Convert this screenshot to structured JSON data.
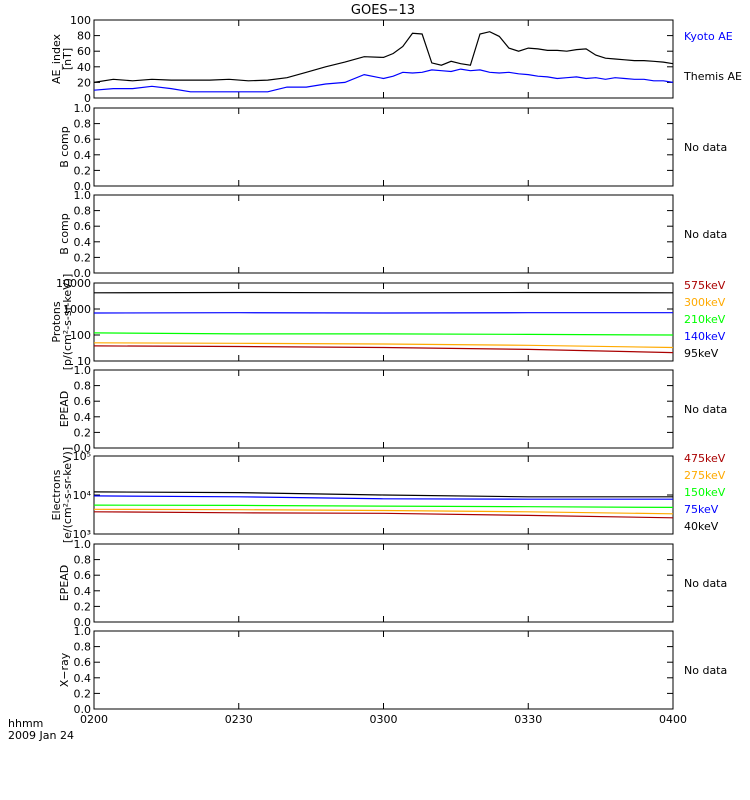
{
  "title": "GOES−13",
  "x_axis": {
    "label_line1": "hhmm",
    "label_line2": "2009 Jan 24",
    "tick_labels": [
      "0200",
      "0230",
      "0300",
      "0330",
      "0400"
    ],
    "range_minutes": [
      0,
      120
    ]
  },
  "colors": {
    "black": "#000000",
    "blue": "#0000ff",
    "green": "#00ff00",
    "orange": "#ffaa00",
    "darkred": "#aa0000"
  },
  "chart_data": [
    {
      "type": "line",
      "ylabel": "AE_index\n[nT]",
      "ylim": [
        0,
        100
      ],
      "yticks": [
        "0",
        "20",
        "40",
        "60",
        "80",
        "100"
      ],
      "series": [
        {
          "name": "Kyoto AE",
          "color": "blue",
          "x": [
            0,
            4,
            8,
            12,
            16,
            20,
            24,
            28,
            32,
            36,
            40,
            44,
            48,
            52,
            56,
            60,
            62,
            64,
            66,
            68,
            70,
            72,
            74,
            76,
            78,
            80,
            82,
            84,
            86,
            88,
            90,
            92,
            94,
            96,
            98,
            100,
            102,
            104,
            106,
            108,
            110,
            112,
            114,
            116,
            118,
            120
          ],
          "y": [
            10,
            12,
            12,
            15,
            12,
            8,
            8,
            8,
            8,
            8,
            14,
            14,
            18,
            20,
            30,
            25,
            28,
            33,
            32,
            33,
            36,
            35,
            34,
            37,
            35,
            36,
            33,
            32,
            33,
            31,
            30,
            28,
            27,
            25,
            26,
            27,
            25,
            26,
            24,
            26,
            25,
            24,
            24,
            22,
            22,
            20
          ]
        },
        {
          "name": "Themis AE",
          "color": "black",
          "x": [
            0,
            4,
            8,
            12,
            16,
            20,
            24,
            28,
            32,
            36,
            40,
            44,
            48,
            52,
            56,
            60,
            62,
            64,
            66,
            68,
            70,
            72,
            74,
            76,
            78,
            80,
            82,
            84,
            86,
            88,
            90,
            92,
            94,
            96,
            98,
            100,
            102,
            104,
            106,
            108,
            110,
            112,
            114,
            116,
            118,
            120
          ],
          "y": [
            20,
            24,
            22,
            24,
            23,
            23,
            23,
            24,
            22,
            23,
            26,
            33,
            40,
            46,
            53,
            52,
            57,
            66,
            83,
            82,
            45,
            42,
            47,
            44,
            42,
            82,
            85,
            79,
            64,
            60,
            64,
            63,
            61,
            61,
            60,
            62,
            63,
            55,
            51,
            50,
            49,
            48,
            48,
            47,
            46,
            44
          ]
        }
      ],
      "right_labels": [
        {
          "text": "Kyoto AE",
          "color": "blue"
        },
        {
          "text": "Themis AE",
          "color": "black"
        }
      ]
    },
    {
      "type": "line",
      "ylabel": "B comp",
      "ylim": [
        0,
        1
      ],
      "yticks": [
        "0.0",
        "0.2",
        "0.4",
        "0.6",
        "0.8",
        "1.0"
      ],
      "series": [],
      "right_labels": [
        {
          "text": "No data",
          "color": "black"
        }
      ]
    },
    {
      "type": "line",
      "ylabel": "B comp",
      "ylim": [
        0,
        1
      ],
      "yticks": [
        "0.0",
        "0.2",
        "0.4",
        "0.6",
        "0.8",
        "1.0"
      ],
      "series": [],
      "right_labels": [
        {
          "text": "No data",
          "color": "black"
        }
      ]
    },
    {
      "type": "line",
      "log": true,
      "ylabel": "Protons\n[p/(cm²-s-sr-keV)]",
      "ylim": [
        10,
        10000
      ],
      "yticks": [
        "10",
        "100",
        "1000",
        "10000"
      ],
      "series": [
        {
          "name": "95keV",
          "color": "black",
          "x": [
            0,
            30,
            60,
            90,
            120
          ],
          "y": [
            4200,
            4300,
            4200,
            4300,
            4200
          ]
        },
        {
          "name": "140keV",
          "color": "blue",
          "x": [
            0,
            30,
            60,
            90,
            120
          ],
          "y": [
            700,
            720,
            700,
            720,
            720
          ]
        },
        {
          "name": "210keV",
          "color": "green",
          "x": [
            0,
            30,
            60,
            90,
            120
          ],
          "y": [
            120,
            110,
            110,
            105,
            100
          ]
        },
        {
          "name": "300keV",
          "color": "orange",
          "x": [
            0,
            30,
            60,
            90,
            120
          ],
          "y": [
            50,
            48,
            45,
            40,
            33
          ]
        },
        {
          "name": "575keV",
          "color": "darkred",
          "x": [
            0,
            30,
            60,
            90,
            120
          ],
          "y": [
            38,
            36,
            33,
            28,
            21
          ]
        }
      ],
      "right_labels": [
        {
          "text": "575keV",
          "color": "darkred"
        },
        {
          "text": "300keV",
          "color": "orange"
        },
        {
          "text": "210keV",
          "color": "green"
        },
        {
          "text": "140keV",
          "color": "blue"
        },
        {
          "text": "95keV",
          "color": "black"
        }
      ]
    },
    {
      "type": "line",
      "ylabel": "EPEAD",
      "ylim": [
        0,
        1
      ],
      "yticks": [
        "0.0",
        "0.2",
        "0.4",
        "0.6",
        "0.8",
        "1.0"
      ],
      "series": [],
      "right_labels": [
        {
          "text": "No data",
          "color": "black"
        }
      ]
    },
    {
      "type": "line",
      "log": true,
      "ylabel": "Electrons\n[e/(cm²-s-sr-keV)]",
      "ylim": [
        1000,
        100000
      ],
      "yticks": [
        "10³",
        "10⁴",
        "10⁵"
      ],
      "series": [
        {
          "name": "40keV",
          "color": "black",
          "x": [
            0,
            30,
            60,
            90,
            120
          ],
          "y": [
            12000,
            11500,
            10000,
            9000,
            9000
          ]
        },
        {
          "name": "75keV",
          "color": "blue",
          "x": [
            0,
            30,
            60,
            90,
            120
          ],
          "y": [
            9500,
            9000,
            8000,
            7800,
            7800
          ]
        },
        {
          "name": "150keV",
          "color": "green",
          "x": [
            0,
            30,
            60,
            90,
            120
          ],
          "y": [
            5500,
            5400,
            5200,
            5000,
            4800
          ]
        },
        {
          "name": "275keV",
          "color": "orange",
          "x": [
            0,
            30,
            60,
            90,
            120
          ],
          "y": [
            4300,
            4200,
            4000,
            3700,
            3300
          ]
        },
        {
          "name": "475keV",
          "color": "darkred",
          "x": [
            0,
            30,
            60,
            90,
            120
          ],
          "y": [
            3700,
            3500,
            3400,
            3000,
            2600
          ]
        }
      ],
      "right_labels": [
        {
          "text": "475keV",
          "color": "darkred"
        },
        {
          "text": "275keV",
          "color": "orange"
        },
        {
          "text": "150keV",
          "color": "green"
        },
        {
          "text": "75keV",
          "color": "blue"
        },
        {
          "text": "40keV",
          "color": "black"
        }
      ]
    },
    {
      "type": "line",
      "ylabel": "EPEAD",
      "ylim": [
        0,
        1
      ],
      "yticks": [
        "0.0",
        "0.2",
        "0.4",
        "0.6",
        "0.8",
        "1.0"
      ],
      "series": [],
      "right_labels": [
        {
          "text": "No data",
          "color": "black"
        }
      ]
    },
    {
      "type": "line",
      "ylabel": "X−ray",
      "ylim": [
        0,
        1
      ],
      "yticks": [
        "0.0",
        "0.2",
        "0.4",
        "0.6",
        "0.8",
        "1.0"
      ],
      "series": [],
      "right_labels": [
        {
          "text": "No data",
          "color": "black"
        }
      ]
    }
  ]
}
